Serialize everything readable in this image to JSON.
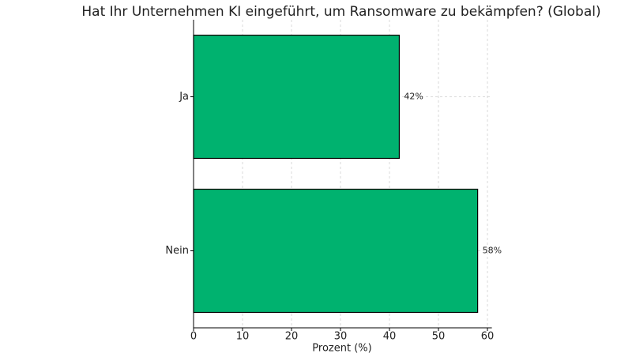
{
  "chart_data": {
    "type": "barh",
    "title": "Hat Ihr Unternehmen KI eingeführt, um Ransomware zu bekämpfen? (Global)",
    "xlabel": "Prozent (%)",
    "categories": [
      "Ja",
      "Nein"
    ],
    "values": [
      42,
      58
    ],
    "value_labels": [
      "42%",
      "58%"
    ],
    "color": "#00b26f",
    "edgecolor": "#000000",
    "xlim": [
      0,
      60.9
    ],
    "xticks": [
      0,
      10,
      20,
      30,
      40,
      50,
      60
    ],
    "grid": true
  }
}
